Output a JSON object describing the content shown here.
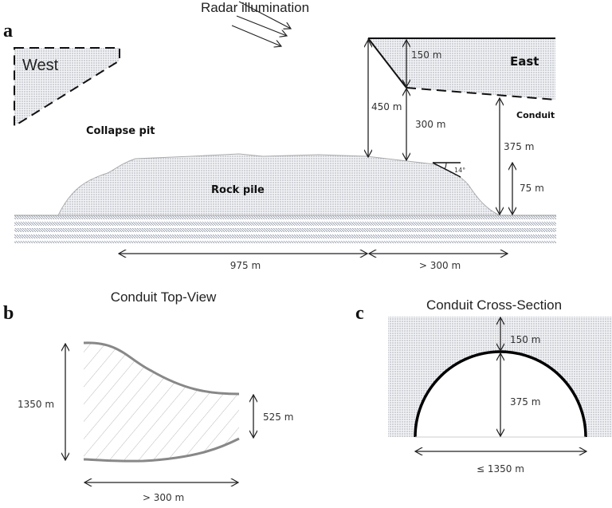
{
  "panel_a": {
    "letter": "a",
    "radar": "Radar illumination",
    "west": "West",
    "east": "East",
    "collapse_pit": "Collapse pit",
    "rock_pile": "Rock pile",
    "conduit": "Conduit",
    "dims": {
      "d150": "150 m",
      "d450": "450 m",
      "d300": "300 m",
      "d375": "375 m",
      "d75": "75 m",
      "angle": "14°",
      "d975": "975 m",
      "d300b": "> 300 m"
    }
  },
  "panel_b": {
    "letter": "b",
    "title": "Conduit Top-View",
    "d1350": "1350 m",
    "d525": "525 m",
    "d300": "> 300 m"
  },
  "panel_c": {
    "letter": "c",
    "title": "Conduit Cross-Section",
    "d150": "150 m",
    "d375": "375 m",
    "d1350": "≤ 1350 m"
  }
}
